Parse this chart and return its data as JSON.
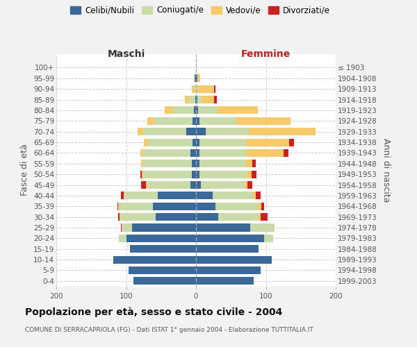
{
  "age_groups": [
    "0-4",
    "5-9",
    "10-14",
    "15-19",
    "20-24",
    "25-29",
    "30-34",
    "35-39",
    "40-44",
    "45-49",
    "50-54",
    "55-59",
    "60-64",
    "65-69",
    "70-74",
    "75-79",
    "80-84",
    "85-89",
    "90-94",
    "95-99",
    "100+"
  ],
  "birth_years": [
    "1999-2003",
    "1994-1998",
    "1989-1993",
    "1984-1988",
    "1979-1983",
    "1974-1978",
    "1969-1973",
    "1964-1968",
    "1959-1963",
    "1954-1958",
    "1949-1953",
    "1944-1948",
    "1939-1943",
    "1934-1938",
    "1929-1933",
    "1924-1928",
    "1919-1923",
    "1914-1918",
    "1909-1913",
    "1904-1908",
    "≤ 1903"
  ],
  "maschi_celibi": [
    90,
    97,
    118,
    95,
    100,
    92,
    58,
    62,
    55,
    8,
    6,
    6,
    8,
    5,
    14,
    5,
    3,
    1,
    0,
    2,
    0
  ],
  "maschi_coniugati": [
    0,
    0,
    0,
    0,
    10,
    14,
    50,
    48,
    48,
    62,
    70,
    70,
    68,
    65,
    62,
    55,
    30,
    9,
    2,
    0,
    0
  ],
  "maschi_vedovi": [
    0,
    0,
    0,
    0,
    0,
    0,
    1,
    1,
    0,
    2,
    2,
    3,
    4,
    5,
    8,
    10,
    12,
    6,
    4,
    0,
    0
  ],
  "maschi_divorziati": [
    0,
    0,
    0,
    0,
    0,
    1,
    2,
    1,
    4,
    7,
    2,
    0,
    0,
    0,
    0,
    0,
    0,
    0,
    0,
    0,
    0
  ],
  "femmine_nubili": [
    83,
    93,
    108,
    90,
    98,
    78,
    32,
    28,
    24,
    7,
    5,
    5,
    5,
    5,
    14,
    5,
    3,
    2,
    0,
    2,
    0
  ],
  "femmine_coniugate": [
    0,
    0,
    0,
    0,
    12,
    34,
    58,
    62,
    58,
    62,
    68,
    66,
    68,
    66,
    62,
    52,
    28,
    6,
    2,
    0,
    0
  ],
  "femmine_vedove": [
    0,
    0,
    0,
    0,
    0,
    0,
    3,
    4,
    4,
    5,
    7,
    10,
    52,
    62,
    95,
    78,
    58,
    18,
    24,
    4,
    0
  ],
  "femmine_divorziate": [
    0,
    0,
    0,
    0,
    0,
    0,
    9,
    4,
    7,
    7,
    7,
    5,
    7,
    7,
    0,
    0,
    0,
    4,
    2,
    0,
    0
  ],
  "color_celibi": "#3a6898",
  "color_coniugati": "#c8dba8",
  "color_vedovi": "#f6c96a",
  "color_divorziati": "#cc2020",
  "bg_color": "#f2f2f2",
  "plot_bg": "#ffffff",
  "title": "Popolazione per età, sesso e stato civile - 2004",
  "subtitle": "COMUNE DI SERRACAPRIOLA (FG) - Dati ISTAT 1° gennaio 2004 - Elaborazione TUTTITALIA.IT",
  "xlim": 200
}
